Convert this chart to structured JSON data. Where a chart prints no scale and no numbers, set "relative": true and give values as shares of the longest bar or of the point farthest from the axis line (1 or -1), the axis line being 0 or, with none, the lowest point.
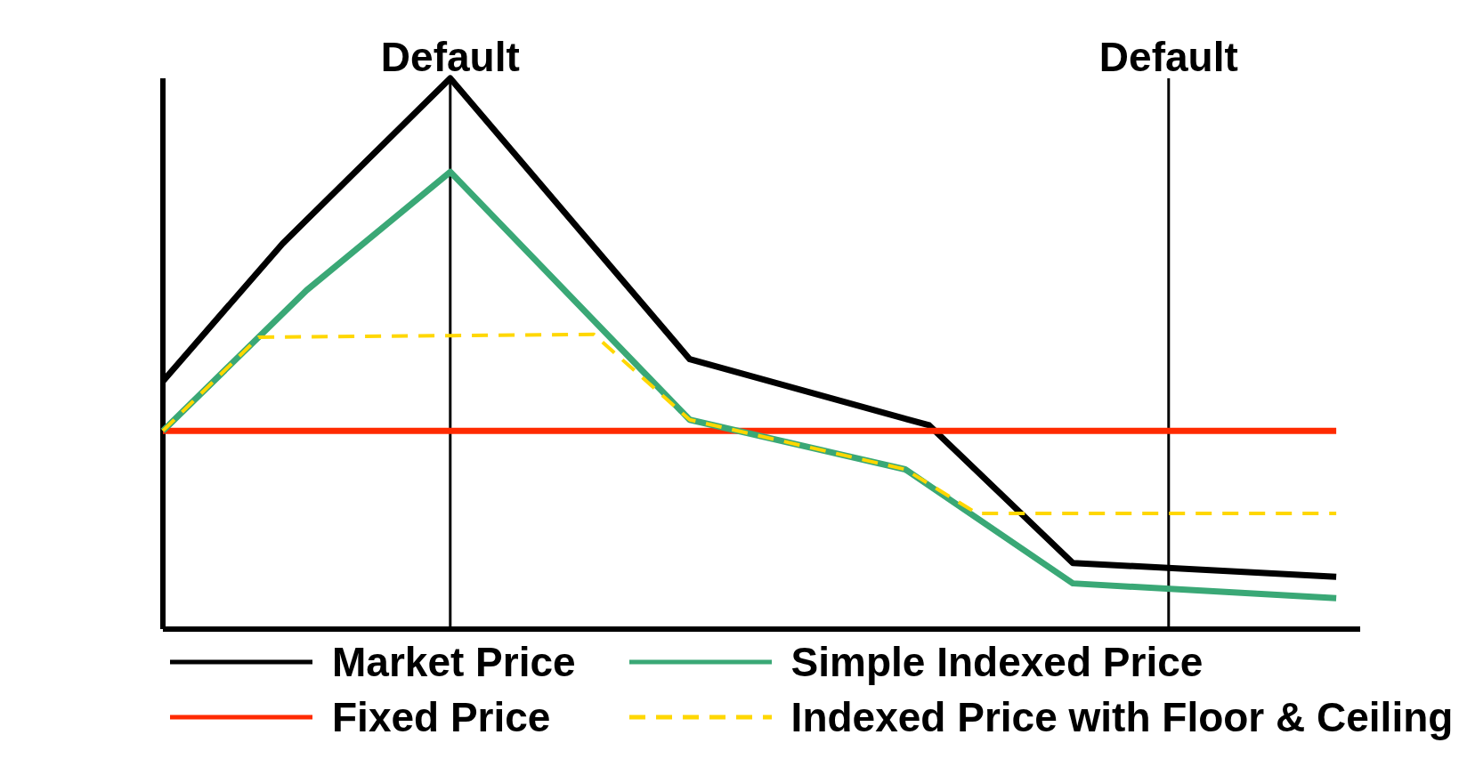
{
  "chart_data": {
    "type": "line",
    "relative": true,
    "tick_labels": "x",
    "legend": "bottom",
    "marker": "none",
    "line_style": "solid",
    "categories": [
      null,
      null,
      null,
      null,
      null,
      null,
      null,
      null,
      null,
      null,
      null,
      null,
      "Default",
      null,
      null,
      null,
      null,
      null,
      null,
      null,
      null,
      null,
      null,
      null,
      null,
      null,
      null,
      null,
      null,
      null,
      null,
      null,
      null,
      null,
      null,
      null,
      null,
      null,
      null,
      null,
      null,
      null,
      "Default",
      null,
      null,
      null,
      null,
      null,
      null,
      null,
      null
    ],
    "series": [
      {
        "name": "Market Price",
        "color": "#000000",
        "values": [
          0.45,
          null,
          null,
          null,
          null,
          0.7,
          null,
          null,
          null,
          null,
          null,
          null,
          1,
          null,
          null,
          null,
          null,
          null,
          null,
          null,
          null,
          null,
          0.49,
          null,
          null,
          null,
          null,
          null,
          null,
          null,
          null,
          null,
          0.37,
          null,
          null,
          null,
          null,
          null,
          0.12,
          null,
          null,
          null,
          null,
          null,
          null,
          null,
          null,
          null,
          null,
          0.095,
          null
        ]
      },
      {
        "name": "Fixed Price",
        "color": "#ff2a00",
        "values": [
          0.36,
          null,
          null,
          null,
          null,
          null,
          null,
          null,
          null,
          null,
          null,
          null,
          null,
          null,
          null,
          null,
          null,
          null,
          null,
          null,
          null,
          null,
          null,
          null,
          null,
          null,
          null,
          null,
          null,
          null,
          null,
          null,
          null,
          null,
          null,
          null,
          null,
          null,
          null,
          null,
          null,
          null,
          null,
          null,
          null,
          null,
          null,
          null,
          null,
          0.36,
          null
        ]
      },
      {
        "name": "Simple Indexed Price",
        "color": "#3aa876",
        "values": [
          0.36,
          null,
          null,
          null,
          null,
          null,
          0.615,
          null,
          null,
          null,
          null,
          null,
          0.83,
          null,
          null,
          null,
          null,
          null,
          null,
          null,
          null,
          null,
          0.38,
          null,
          null,
          null,
          null,
          null,
          null,
          null,
          null,
          0.29,
          null,
          null,
          null,
          null,
          null,
          null,
          0.083,
          null,
          null,
          null,
          null,
          null,
          null,
          null,
          null,
          null,
          null,
          0.056,
          null
        ]
      },
      {
        "name": "Indexed Price with Floor & Ceiling",
        "color": "#ffd700",
        "line_style": "dashed",
        "values": [
          0.36,
          null,
          null,
          null,
          0.53,
          null,
          null,
          null,
          null,
          null,
          null,
          null,
          null,
          null,
          null,
          null,
          null,
          null,
          0.535,
          null,
          null,
          null,
          0.38,
          null,
          null,
          null,
          null,
          null,
          null,
          null,
          null,
          0.29,
          null,
          null,
          0.21,
          null,
          null,
          null,
          null,
          null,
          null,
          null,
          null,
          null,
          null,
          null,
          null,
          null,
          null,
          0.21,
          null
        ]
      }
    ],
    "ref_lines": [
      {
        "axis": "x",
        "value": "Default",
        "color": "#000000"
      }
    ]
  }
}
